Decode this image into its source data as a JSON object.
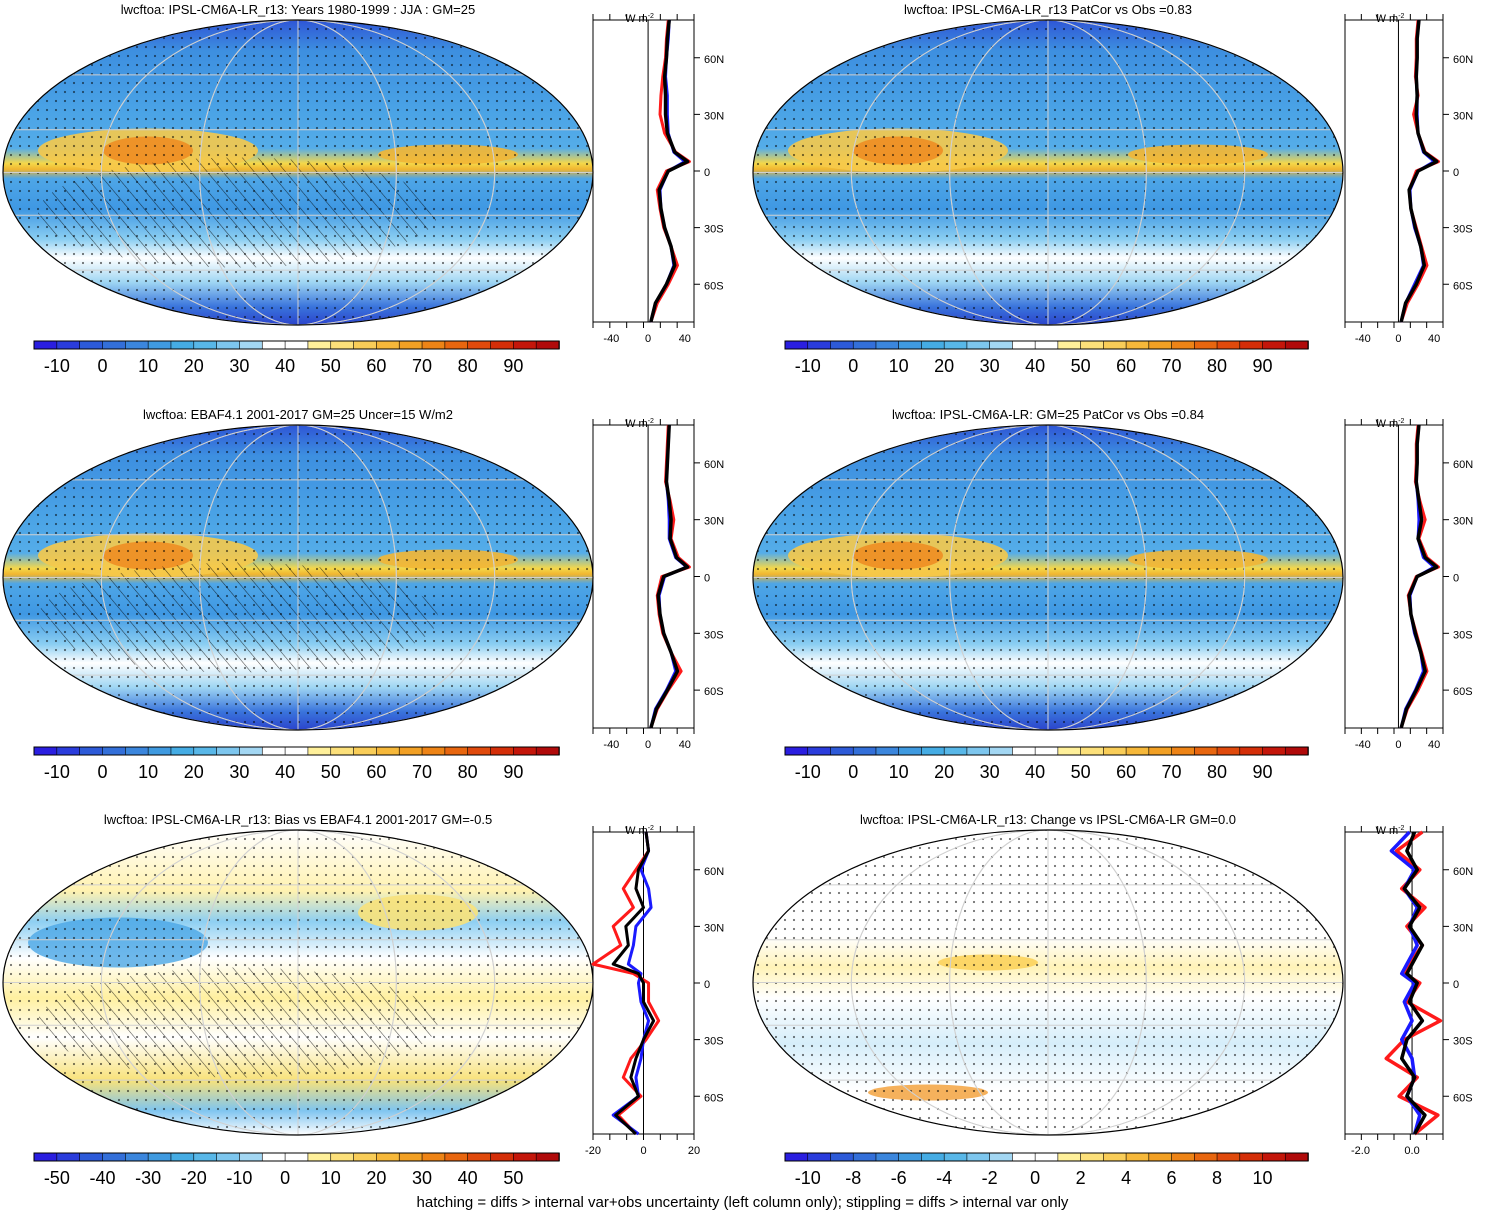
{
  "footer": "hatching = diffs > internal var+obs uncertainty (left column only); stippling = diffs > internal var only",
  "colors": {
    "model": "#ff1a1a",
    "obs": "#1a1aff",
    "mean": "#000000",
    "gridline": "#d0d0d0"
  },
  "chart_data": [
    {
      "type": "heatmap",
      "title": "lwcftoa: IPSL-CM6A-LR_r13: Years 1980-1999 : JJA : GM=25",
      "colorbar_labels": [
        "-10",
        "0",
        "10",
        "20",
        "30",
        "40",
        "50",
        "60",
        "70",
        "80",
        "90"
      ],
      "profile": {
        "units_label": "W m",
        "units_sup": "-2",
        "x_ticks": [
          "-40",
          "0",
          "40"
        ],
        "xlim": [
          -60,
          50
        ],
        "lat_ticks": [
          "60N",
          "30N",
          "0",
          "30S",
          "60S"
        ],
        "lats": [
          80,
          70,
          60,
          50,
          40,
          30,
          20,
          10,
          5,
          0,
          -10,
          -20,
          -30,
          -40,
          -50,
          -60,
          -70,
          -80
        ],
        "series": [
          {
            "name": "model",
            "values": [
              22,
              20,
              19,
              16,
              14,
              13,
              18,
              30,
              45,
              20,
              10,
              13,
              17,
              25,
              32,
              22,
              10,
              3
            ]
          },
          {
            "name": "obs",
            "values": [
              23,
              22,
              20,
              19,
              21,
              21,
              22,
              28,
              40,
              22,
              13,
              14,
              18,
              25,
              28,
              20,
              8,
              3
            ]
          },
          {
            "name": "mean",
            "values": [
              23,
              21,
              20,
              18,
              19,
              19,
              21,
              29,
              43,
              22,
              12,
              14,
              18,
              25,
              29,
              20,
              8,
              3
            ]
          }
        ]
      }
    },
    {
      "type": "heatmap",
      "title": "lwcftoa: IPSL-CM6A-LR_r13 PatCor vs Obs =0.83",
      "colorbar_labels": [
        "-10",
        "0",
        "10",
        "20",
        "30",
        "40",
        "50",
        "60",
        "70",
        "80",
        "90"
      ],
      "profile": {
        "units_label": "W m",
        "units_sup": "-2",
        "x_ticks": [
          "-40",
          "0",
          "40"
        ],
        "xlim": [
          -60,
          50
        ],
        "lat_ticks": [
          "60N",
          "30N",
          "0",
          "30S",
          "60S"
        ],
        "lats": [
          80,
          70,
          60,
          50,
          40,
          30,
          20,
          10,
          5,
          0,
          -10,
          -20,
          -30,
          -40,
          -50,
          -60,
          -70,
          -80
        ],
        "series": [
          {
            "name": "model",
            "values": [
              22,
              20,
              20,
              19,
              22,
              17,
              22,
              30,
              45,
              20,
              12,
              14,
              20,
              26,
              32,
              22,
              10,
              3
            ]
          },
          {
            "name": "obs",
            "values": [
              23,
              21,
              21,
              20,
              21,
              21,
              22,
              28,
              40,
              22,
              13,
              14,
              18,
              25,
              28,
              18,
              8,
              3
            ]
          },
          {
            "name": "mean",
            "values": [
              23,
              21,
              21,
              20,
              21,
              20,
              22,
              29,
              43,
              22,
              12,
              14,
              19,
              25,
              29,
              20,
              8,
              3
            ]
          }
        ]
      }
    },
    {
      "type": "heatmap",
      "title": "lwcftoa: EBAF4.1 2001-2017 GM=25 Uncer=15 W/m2",
      "colorbar_labels": [
        "-10",
        "0",
        "10",
        "20",
        "30",
        "40",
        "50",
        "60",
        "70",
        "80",
        "90"
      ],
      "profile": {
        "units_label": "W m",
        "units_sup": "-2",
        "x_ticks": [
          "-40",
          "0",
          "40"
        ],
        "xlim": [
          -60,
          50
        ],
        "lat_ticks": [
          "60N",
          "30N",
          "0",
          "30S",
          "60S"
        ],
        "lats": [
          80,
          70,
          60,
          50,
          40,
          30,
          20,
          10,
          5,
          0,
          -10,
          -20,
          -30,
          -40,
          -50,
          -60,
          -70,
          -80
        ],
        "series": [
          {
            "name": "model",
            "values": [
              22,
              21,
              20,
              19,
              24,
              28,
              25,
              33,
              45,
              15,
              10,
              12,
              16,
              25,
              36,
              22,
              10,
              3
            ]
          },
          {
            "name": "obs",
            "values": [
              23,
              22,
              21,
              20,
              22,
              23,
              23,
              30,
              42,
              18,
              12,
              13,
              17,
              25,
              30,
              20,
              8,
              3
            ]
          },
          {
            "name": "mean",
            "values": [
              23,
              22,
              21,
              20,
              23,
              25,
              24,
              31,
              43,
              17,
              11,
              13,
              17,
              25,
              32,
              21,
              9,
              3
            ]
          }
        ]
      }
    },
    {
      "type": "heatmap",
      "title": "lwcftoa: IPSL-CM6A-LR: GM=25 PatCor vs Obs =0.84",
      "colorbar_labels": [
        "-10",
        "0",
        "10",
        "20",
        "30",
        "40",
        "50",
        "60",
        "70",
        "80",
        "90"
      ],
      "profile": {
        "units_label": "W m",
        "units_sup": "-2",
        "x_ticks": [
          "-40",
          "0",
          "40"
        ],
        "xlim": [
          -60,
          50
        ],
        "lat_ticks": [
          "60N",
          "30N",
          "0",
          "30S",
          "60S"
        ],
        "lats": [
          80,
          70,
          60,
          50,
          40,
          30,
          20,
          10,
          5,
          0,
          -10,
          -20,
          -30,
          -40,
          -50,
          -60,
          -70,
          -80
        ],
        "series": [
          {
            "name": "model",
            "values": [
              22,
              20,
              20,
              19,
              24,
              30,
              23,
              32,
              45,
              20,
              11,
              14,
              20,
              26,
              32,
              22,
              10,
              3
            ]
          },
          {
            "name": "obs",
            "values": [
              23,
              21,
              21,
              20,
              22,
              23,
              22,
              28,
              40,
              21,
              13,
              14,
              18,
              25,
              28,
              19,
              8,
              3
            ]
          },
          {
            "name": "mean",
            "values": [
              23,
              21,
              21,
              20,
              23,
              26,
              22,
              30,
              43,
              21,
              12,
              14,
              19,
              25,
              30,
              20,
              9,
              3
            ]
          }
        ]
      }
    },
    {
      "type": "heatmap",
      "title": "lwcftoa: IPSL-CM6A-LR_r13: Bias vs EBAF4.1 2001-2017 GM=-0.5",
      "colorbar_labels": [
        "-50",
        "-40",
        "-30",
        "-20",
        "-10",
        "0",
        "10",
        "20",
        "30",
        "40",
        "50"
      ],
      "profile": {
        "units_label": "W m",
        "units_sup": "-2",
        "x_ticks": [
          "-20",
          "0",
          "20"
        ],
        "xlim": [
          -20,
          20
        ],
        "lat_ticks": [
          "60N",
          "30N",
          "0",
          "30S",
          "60S"
        ],
        "lats": [
          80,
          70,
          60,
          50,
          40,
          30,
          20,
          10,
          5,
          0,
          -10,
          -20,
          -30,
          -40,
          -50,
          -60,
          -70,
          -80
        ],
        "series": [
          {
            "name": "model",
            "values": [
              1,
              2,
              -3,
              -8,
              -4,
              -12,
              -9,
              -20,
              -4,
              2,
              2,
              6,
              1,
              -5,
              -8,
              -1,
              -10,
              -3
            ],
            "width": 3
          },
          {
            "name": "obs",
            "values": [
              1,
              2,
              -1,
              2,
              3,
              -3,
              -4,
              -6,
              -1,
              -2,
              -1,
              2,
              0,
              -1,
              -3,
              -2,
              -12,
              -2
            ],
            "width": 3
          },
          {
            "name": "mean",
            "values": [
              1,
              2,
              -2,
              -3,
              0,
              -7,
              -6,
              -12,
              -2,
              0,
              0,
              4,
              0,
              -3,
              -5,
              -2,
              -11,
              -3
            ],
            "width": 3
          }
        ]
      }
    },
    {
      "type": "heatmap",
      "title": "lwcftoa: IPSL-CM6A-LR_r13: Change vs IPSL-CM6A-LR GM=0.0",
      "colorbar_labels": [
        "-10",
        "-8",
        "-6",
        "-4",
        "-2",
        "0",
        "2",
        "4",
        "6",
        "8",
        "10"
      ],
      "profile": {
        "units_label": "W m",
        "units_sup": "-2",
        "x_ticks": [
          "-2.0",
          "0.0"
        ],
        "xlim": [
          -2.6,
          1.2
        ],
        "lat_ticks": [
          "60N",
          "30N",
          "0",
          "30S",
          "60S"
        ],
        "lats": [
          80,
          70,
          60,
          50,
          40,
          30,
          20,
          10,
          5,
          0,
          -10,
          -20,
          -30,
          -40,
          -50,
          -60,
          -70,
          -80
        ],
        "series": [
          {
            "name": "model",
            "values": [
              0.4,
              -0.6,
              0.3,
              -0.4,
              0.5,
              -0.2,
              0.4,
              -0.1,
              -0.3,
              0.3,
              -0.2,
              1.1,
              -0.3,
              -1.0,
              0.2,
              -0.5,
              1.0,
              0.1
            ],
            "width": 3.5
          },
          {
            "name": "obs",
            "values": [
              -0.1,
              -0.8,
              0.1,
              -0.3,
              0.2,
              -0.1,
              0.2,
              -0.2,
              -0.4,
              0.1,
              -0.3,
              0.0,
              -0.4,
              0.0,
              0.1,
              -0.2,
              0.3,
              0.1
            ],
            "width": 3.5
          },
          {
            "name": "mean",
            "values": [
              0.1,
              -0.2,
              0.2,
              -0.3,
              0.3,
              -0.1,
              0.4,
              0.0,
              -0.2,
              0.2,
              -0.1,
              0.4,
              -0.2,
              -0.4,
              0.1,
              -0.2,
              0.5,
              0.1
            ],
            "width": 3.5
          }
        ]
      }
    }
  ]
}
